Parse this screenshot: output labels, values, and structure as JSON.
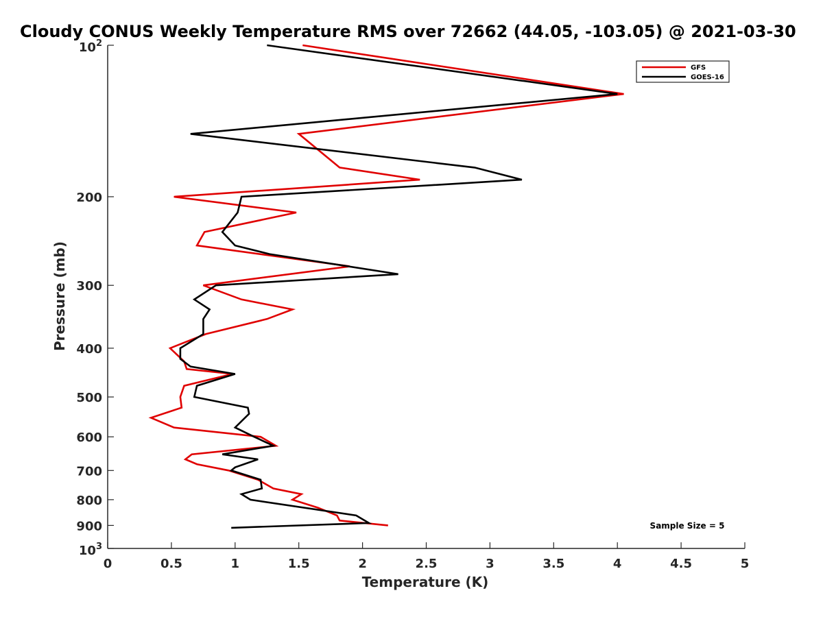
{
  "chart_data": {
    "type": "line",
    "title": "Cloudy CONUS Weekly Temperature RMS over 72662 (44.05, -103.05) @ 2021-03-30",
    "xlabel": "Temperature (K)",
    "ylabel": "Pressure (mb)",
    "xlim": [
      0,
      5
    ],
    "ylim": [
      100,
      1000
    ],
    "y_scale": "log",
    "y_reversed": true,
    "x_ticks": [
      "0",
      "0.5",
      "1",
      "1.5",
      "2",
      "2.5",
      "3",
      "3.5",
      "4",
      "4.5",
      "5"
    ],
    "y_ticks": [
      {
        "value": 200,
        "label": "200"
      },
      {
        "value": 300,
        "label": "300"
      },
      {
        "value": 400,
        "label": "400"
      },
      {
        "value": 500,
        "label": "500"
      },
      {
        "value": 600,
        "label": "600"
      },
      {
        "value": 700,
        "label": "700"
      },
      {
        "value": 800,
        "label": "800"
      },
      {
        "value": 900,
        "label": "900"
      }
    ],
    "y_power_ticks": [
      {
        "value": 100,
        "base": "10",
        "exp": "2"
      },
      {
        "value": 1000,
        "base": "10",
        "exp": "3"
      }
    ],
    "grid": false,
    "legend_position": "top-right",
    "annotation": "Sample Size = 5",
    "series": [
      {
        "name": "GFS",
        "color": "#e00000",
        "points": [
          [
            1.53,
            100
          ],
          [
            4.05,
            125
          ],
          [
            1.5,
            150
          ],
          [
            1.82,
            175
          ],
          [
            2.45,
            185
          ],
          [
            0.52,
            200
          ],
          [
            1.48,
            215
          ],
          [
            0.76,
            235
          ],
          [
            0.7,
            250
          ],
          [
            1.9,
            275
          ],
          [
            0.75,
            300
          ],
          [
            1.05,
            320
          ],
          [
            1.45,
            335
          ],
          [
            1.25,
            350
          ],
          [
            0.77,
            375
          ],
          [
            0.49,
            400
          ],
          [
            0.6,
            425
          ],
          [
            0.62,
            440
          ],
          [
            0.98,
            450
          ],
          [
            0.6,
            475
          ],
          [
            0.57,
            500
          ],
          [
            0.58,
            525
          ],
          [
            0.34,
            550
          ],
          [
            0.52,
            575
          ],
          [
            1.2,
            600
          ],
          [
            1.32,
            625
          ],
          [
            0.66,
            650
          ],
          [
            0.61,
            665
          ],
          [
            0.7,
            680
          ],
          [
            0.95,
            700
          ],
          [
            1.18,
            730
          ],
          [
            1.3,
            760
          ],
          [
            1.52,
            780
          ],
          [
            1.45,
            800
          ],
          [
            1.65,
            830
          ],
          [
            1.8,
            860
          ],
          [
            1.82,
            880
          ],
          [
            2.2,
            900
          ]
        ]
      },
      {
        "name": "GOES-16",
        "color": "#000000",
        "points": [
          [
            1.25,
            100
          ],
          [
            4.0,
            125
          ],
          [
            0.65,
            150
          ],
          [
            2.88,
            175
          ],
          [
            3.25,
            185
          ],
          [
            1.05,
            200
          ],
          [
            1.02,
            215
          ],
          [
            0.9,
            235
          ],
          [
            1.0,
            250
          ],
          [
            1.27,
            260
          ],
          [
            2.28,
            285
          ],
          [
            0.85,
            300
          ],
          [
            0.68,
            320
          ],
          [
            0.8,
            335
          ],
          [
            0.75,
            350
          ],
          [
            0.75,
            375
          ],
          [
            0.57,
            400
          ],
          [
            0.57,
            420
          ],
          [
            0.65,
            435
          ],
          [
            1.0,
            450
          ],
          [
            0.7,
            475
          ],
          [
            0.68,
            500
          ],
          [
            1.1,
            525
          ],
          [
            1.11,
            540
          ],
          [
            1.0,
            575
          ],
          [
            1.15,
            600
          ],
          [
            1.3,
            625
          ],
          [
            0.9,
            650
          ],
          [
            1.18,
            665
          ],
          [
            1.0,
            690
          ],
          [
            0.97,
            700
          ],
          [
            1.2,
            730
          ],
          [
            1.21,
            760
          ],
          [
            1.05,
            780
          ],
          [
            1.12,
            800
          ],
          [
            1.95,
            860
          ],
          [
            2.05,
            890
          ],
          [
            0.97,
            910
          ]
        ]
      }
    ]
  }
}
